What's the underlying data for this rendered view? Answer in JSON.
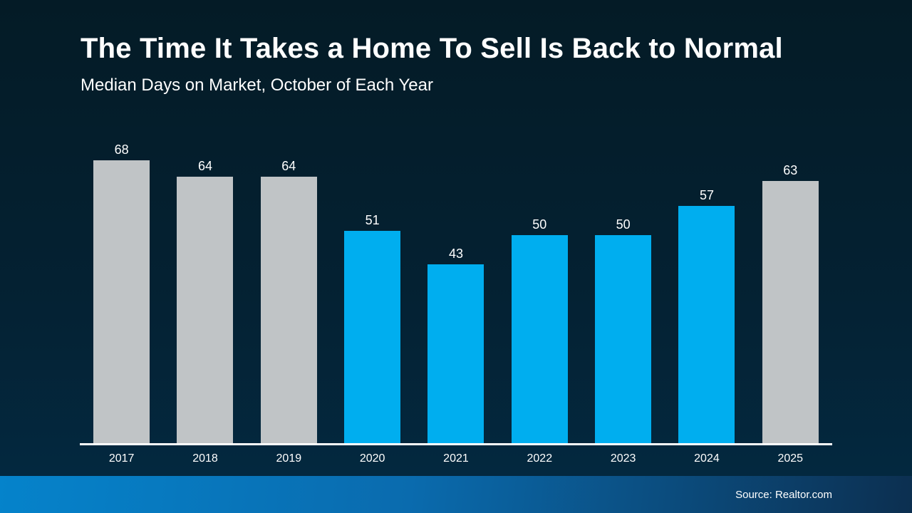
{
  "slide": {
    "title": "The Time It Takes a Home To Sell Is Back to Normal",
    "subtitle": "Median Days on Market, October of Each Year",
    "source": "Source: Realtor.com"
  },
  "colors": {
    "background_top": "#041b26",
    "background_bottom": "#03283f",
    "text": "#ffffff",
    "axis_line": "#ffffff",
    "bar_gray": "#c0c4c6",
    "bar_blue": "#00aeef",
    "footer_left": "#0583cb",
    "footer_mid": "#0a6bae",
    "footer_right": "#0c2f50"
  },
  "chart_data": {
    "type": "bar",
    "title": "The Time It Takes a Home To Sell Is Back to Normal",
    "subtitle": "Median Days on Market, October of Each Year",
    "categories": [
      "2017",
      "2018",
      "2019",
      "2020",
      "2021",
      "2022",
      "2023",
      "2024",
      "2025"
    ],
    "values": [
      68,
      64,
      64,
      51,
      43,
      50,
      50,
      57,
      63
    ],
    "bar_color_keys": [
      "bar_gray",
      "bar_gray",
      "bar_gray",
      "bar_blue",
      "bar_blue",
      "bar_blue",
      "bar_blue",
      "bar_blue",
      "bar_gray"
    ],
    "value_labels_shown": true,
    "xlabel": "",
    "ylabel": "",
    "ylim": [
      0,
      70
    ],
    "grid": false,
    "legend": "none",
    "source": "Source: Realtor.com"
  }
}
